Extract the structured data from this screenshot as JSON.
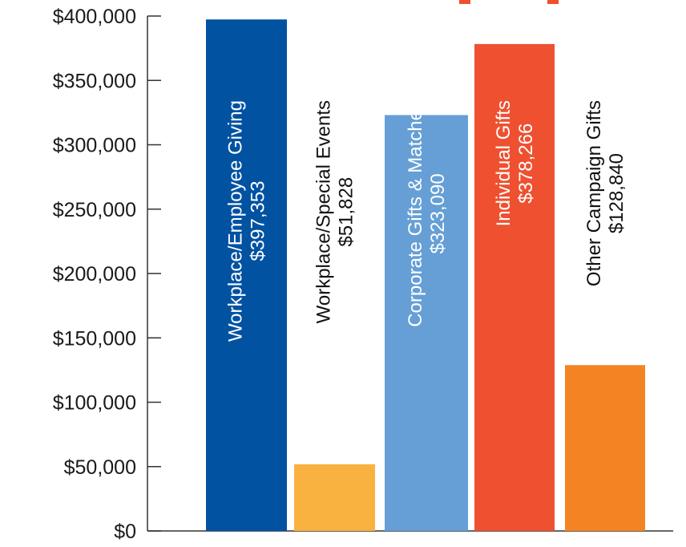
{
  "chart_data": {
    "type": "bar",
    "title": "",
    "xlabel": "",
    "ylabel": "",
    "ylim": [
      0,
      400000
    ],
    "grid": false,
    "legend": "none",
    "y_ticks": [
      0,
      50000,
      100000,
      150000,
      200000,
      250000,
      300000,
      350000,
      400000
    ],
    "y_tick_labels": [
      "$0",
      "$50,000",
      "$100,000",
      "$150,000",
      "$200,000",
      "$250,000",
      "$300,000",
      "$350,000",
      "$400,000"
    ],
    "categories": [
      "Workplace/Employee Giving",
      "Workplace/Special Events",
      "Corporate Gifts & Matches",
      "Individual Gifts",
      "Other Campaign Gifts"
    ],
    "values": [
      397353,
      51828,
      323090,
      378266,
      128840
    ],
    "value_labels": [
      "$397,353",
      "$51,828",
      "$323,090",
      "$378,266",
      "$128,840"
    ],
    "colors": [
      "#0252a2",
      "#f9b13f",
      "#659fd6",
      "#ee5030",
      "#f48423"
    ],
    "label_colors": [
      "#ffffff",
      "#111111",
      "#ffffff",
      "#ffffff",
      "#111111"
    ]
  }
}
